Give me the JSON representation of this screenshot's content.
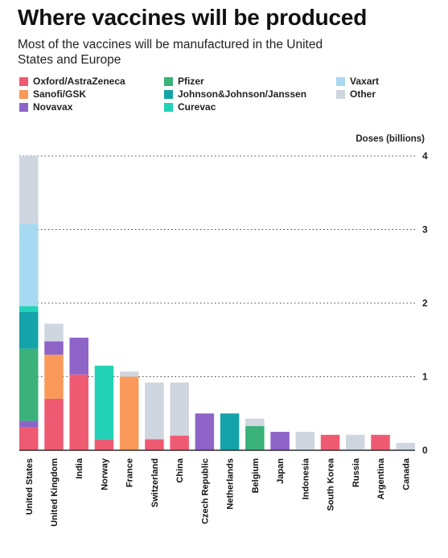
{
  "title": "Where vaccines will be produced",
  "subtitle": "Most of the vaccines will be manufactured in the United States and Europe",
  "colors": {
    "Oxford/AstraZeneca": "#ef5a73",
    "Sanofi/GSK": "#f99a5a",
    "Novavax": "#8e64c8",
    "Pfizer": "#3ab27a",
    "Johnson&Johnson/Janssen": "#14a3a8",
    "Curevac": "#22d3b8",
    "Vaxart": "#a8d9f2",
    "Other": "#cfd6df"
  },
  "chart_data": {
    "type": "bar",
    "stacked": true,
    "ylabel": "Doses (billions)",
    "ylim": [
      0,
      4
    ],
    "yticks": [
      0,
      1,
      2,
      3,
      4
    ],
    "y_axis_side": "right",
    "categories": [
      "United States",
      "United Kingdom",
      "India",
      "Norway",
      "France",
      "Switzerland",
      "China",
      "Czech Republic",
      "Netherlands",
      "Belgium",
      "Japan",
      "Indonesia",
      "South Korea",
      "Russia",
      "Argentina",
      "Canada"
    ],
    "series": [
      {
        "name": "Oxford/AstraZeneca",
        "values": [
          0.31,
          0.7,
          1.03,
          0.15,
          0,
          0.15,
          0.2,
          0,
          0,
          0,
          0,
          0,
          0.21,
          0,
          0.21,
          0
        ]
      },
      {
        "name": "Sanofi/GSK",
        "values": [
          0,
          0.6,
          0,
          0,
          1.0,
          0,
          0,
          0,
          0,
          0,
          0,
          0,
          0,
          0,
          0,
          0
        ]
      },
      {
        "name": "Novavax",
        "values": [
          0.09,
          0.18,
          0.5,
          0,
          0,
          0,
          0,
          0.5,
          0,
          0,
          0.25,
          0,
          0,
          0,
          0,
          0
        ]
      },
      {
        "name": "Pfizer",
        "values": [
          0.98,
          0,
          0,
          0,
          0,
          0,
          0,
          0,
          0,
          0.33,
          0,
          0,
          0,
          0,
          0,
          0
        ]
      },
      {
        "name": "Johnson&Johnson/Janssen",
        "values": [
          0.5,
          0,
          0,
          0,
          0,
          0,
          0,
          0,
          0.5,
          0,
          0,
          0,
          0,
          0,
          0,
          0
        ]
      },
      {
        "name": "Curevac",
        "values": [
          0.08,
          0,
          0,
          1.0,
          0,
          0,
          0,
          0,
          0,
          0,
          0,
          0,
          0,
          0,
          0,
          0
        ]
      },
      {
        "name": "Vaxart",
        "values": [
          1.12,
          0,
          0,
          0,
          0,
          0,
          0,
          0,
          0,
          0,
          0,
          0,
          0,
          0,
          0,
          0
        ]
      },
      {
        "name": "Other",
        "values": [
          0.92,
          0.24,
          0,
          0,
          0.07,
          0.77,
          0.72,
          0,
          0,
          0.1,
          0,
          0.25,
          0,
          0.21,
          0,
          0.1
        ]
      }
    ],
    "grid": true,
    "legend_position": "top"
  }
}
